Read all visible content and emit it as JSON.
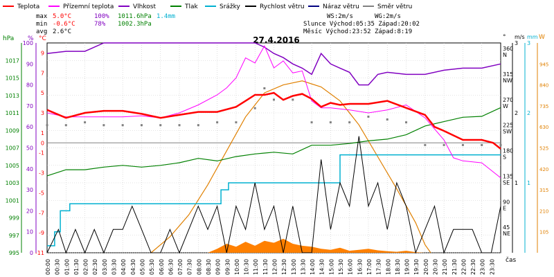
{
  "chart_data": {
    "type": "line",
    "title": "27.4.2016",
    "legend": [
      {
        "label": "Teplota",
        "color": "#ff0000"
      },
      {
        "label": "Přízemní teplota",
        "color": "#ff00ff"
      },
      {
        "label": "Vlhkost",
        "color": "#8000c0"
      },
      {
        "label": "Tlak",
        "color": "#008000"
      },
      {
        "label": "Srážky",
        "color": "#00b0d0"
      },
      {
        "label": "Rychlost větru",
        "color": "#000000"
      },
      {
        "label": "Náraz větru",
        "color": "#000080"
      },
      {
        "label": "Směr větru",
        "color": "#808080"
      }
    ],
    "stats": {
      "max_label": "max",
      "min_label": "min",
      "avg_label": "avg",
      "max_temp": "5.0°C",
      "max_hum": "100%",
      "max_press": "1011.6hPa",
      "max_rain": "1.4mm",
      "min_temp": "-0.6°C",
      "min_hum": "78%",
      "min_press": "1002.3hPa",
      "avg_temp": "2.6°C",
      "ws": "WS:2m/s",
      "wg": "WG:2m/s",
      "sun": "Slunce  Východ:05:35   Západ:20:02",
      "moon": "Měsíc  Východ:23:52   Západ:8:19"
    },
    "axes": {
      "hpa": {
        "label": "hPa",
        "ticks": [
          "1017",
          "1015",
          "1013",
          "1011",
          "1009",
          "1007",
          "1005",
          "1003",
          "1001",
          "999",
          "997",
          "995"
        ],
        "range": [
          995,
          1019
        ]
      },
      "pct": {
        "label": "%",
        "ticks": [
          "100",
          "90",
          "80",
          "70",
          "60",
          "50",
          "40",
          "30",
          "20",
          "10",
          "0"
        ],
        "range": [
          0,
          100
        ]
      },
      "temp": {
        "label": "°C",
        "ticks": [
          "9",
          "7",
          "5",
          "3",
          "1",
          "0",
          "-1",
          "-3",
          "-5",
          "-7",
          "-9",
          "-11"
        ],
        "range": [
          -11,
          10
        ]
      },
      "dir": {
        "label": "°",
        "ticks": [
          {
            "deg": "360",
            "dir": "N"
          },
          {
            "deg": "315",
            "dir": "NW"
          },
          {
            "deg": "270",
            "dir": "W"
          },
          {
            "deg": "225",
            "dir": "SW"
          },
          {
            "deg": "180",
            "dir": "S"
          },
          {
            "deg": "135",
            "dir": "SE"
          },
          {
            "deg": "90",
            "dir": "E"
          },
          {
            "deg": "45",
            "dir": "NE"
          }
        ],
        "range": [
          0,
          370
        ]
      },
      "wind": {
        "label": "m/s",
        "ticks": [
          "3",
          "2",
          "1"
        ],
        "range": [
          0,
          3
        ]
      },
      "rain": {
        "label": "mm",
        "ticks": [
          "3",
          "2",
          "1"
        ],
        "range": [
          0,
          3
        ]
      },
      "solar": {
        "label": "W",
        "ticks": [
          "945",
          "840",
          "735",
          "630",
          "525",
          "420",
          "315",
          "210",
          "105"
        ],
        "range": [
          0,
          1050
        ]
      },
      "x": {
        "label": "čas",
        "ticks": [
          "00:00",
          "00:30",
          "01:00",
          "01:30",
          "02:00",
          "02:30",
          "03:00",
          "03:30",
          "04:00",
          "04:30",
          "05:00",
          "05:30",
          "06:00",
          "06:30",
          "07:00",
          "07:30",
          "08:00",
          "08:30",
          "09:00",
          "09:30",
          "10:00",
          "10:30",
          "11:00",
          "11:30",
          "12:00",
          "12:30",
          "13:00",
          "13:30",
          "14:00",
          "14:30",
          "15:00",
          "15:30",
          "16:00",
          "16:30",
          "17:00",
          "17:30",
          "18:00",
          "18:30",
          "19:00",
          "19:30",
          "20:00",
          "20:30",
          "21:00",
          "21:30",
          "22:00",
          "22:30",
          "23:00",
          "23:30"
        ],
        "range": [
          0,
          24
        ]
      }
    },
    "series": {
      "temperature": [
        [
          0,
          3.3
        ],
        [
          1,
          2.5
        ],
        [
          2,
          3.0
        ],
        [
          3,
          3.2
        ],
        [
          4,
          3.2
        ],
        [
          5,
          2.9
        ],
        [
          6,
          2.5
        ],
        [
          7,
          2.8
        ],
        [
          8,
          3.1
        ],
        [
          9,
          3.1
        ],
        [
          10,
          3.6
        ],
        [
          10.5,
          4.2
        ],
        [
          11,
          4.8
        ],
        [
          11.5,
          4.8
        ],
        [
          12,
          5.0
        ],
        [
          12.5,
          4.3
        ],
        [
          13,
          4.7
        ],
        [
          13.5,
          4.9
        ],
        [
          14,
          4.4
        ],
        [
          14.5,
          3.6
        ],
        [
          15,
          4.0
        ],
        [
          15.5,
          3.8
        ],
        [
          16,
          3.9
        ],
        [
          17,
          3.9
        ],
        [
          18,
          4.2
        ],
        [
          19,
          3.5
        ],
        [
          20,
          2.8
        ],
        [
          20.5,
          1.6
        ],
        [
          21,
          1.2
        ],
        [
          22,
          0.3
        ],
        [
          23,
          0.3
        ],
        [
          23.6,
          0.0
        ],
        [
          24,
          -0.6
        ]
      ],
      "ground_temp": [
        [
          0,
          3.0
        ],
        [
          1,
          2.6
        ],
        [
          2,
          2.6
        ],
        [
          3,
          2.6
        ],
        [
          4,
          2.6
        ],
        [
          5,
          2.7
        ],
        [
          6,
          2.5
        ],
        [
          7,
          3.0
        ],
        [
          8,
          3.8
        ],
        [
          9,
          4.8
        ],
        [
          9.5,
          5.5
        ],
        [
          10,
          6.5
        ],
        [
          10.5,
          8.5
        ],
        [
          11,
          8.0
        ],
        [
          11.5,
          9.7
        ],
        [
          12,
          7.5
        ],
        [
          12.5,
          8.2
        ],
        [
          13,
          7.0
        ],
        [
          13.5,
          7.2
        ],
        [
          14,
          4.2
        ],
        [
          14.5,
          3.5
        ],
        [
          15,
          3.5
        ],
        [
          16,
          3.3
        ],
        [
          17,
          3.0
        ],
        [
          18,
          3.3
        ],
        [
          19,
          3.8
        ],
        [
          20,
          2.5
        ],
        [
          21,
          0.3
        ],
        [
          21.5,
          -1.5
        ],
        [
          22,
          -1.8
        ],
        [
          23,
          -2.0
        ],
        [
          24,
          -3.5
        ]
      ],
      "humidity": [
        [
          0,
          95
        ],
        [
          1,
          96
        ],
        [
          2,
          96
        ],
        [
          3,
          100
        ],
        [
          4,
          100
        ],
        [
          5,
          100
        ],
        [
          6,
          100
        ],
        [
          7,
          100
        ],
        [
          8,
          100
        ],
        [
          9,
          100
        ],
        [
          9.5,
          100
        ],
        [
          10,
          100
        ],
        [
          11,
          100
        ],
        [
          11.5,
          98
        ],
        [
          12,
          95
        ],
        [
          12.5,
          93
        ],
        [
          13,
          90
        ],
        [
          13.5,
          88
        ],
        [
          14,
          85
        ],
        [
          14.5,
          95
        ],
        [
          15,
          90
        ],
        [
          15.5,
          88
        ],
        [
          16,
          86
        ],
        [
          16.5,
          80
        ],
        [
          17,
          80
        ],
        [
          17.5,
          85
        ],
        [
          18,
          86
        ],
        [
          19,
          85
        ],
        [
          20,
          85
        ],
        [
          21,
          87
        ],
        [
          22,
          88
        ],
        [
          23,
          88
        ],
        [
          24,
          90
        ]
      ],
      "pressure": [
        [
          0,
          1003.8
        ],
        [
          1,
          1004.5
        ],
        [
          2,
          1004.5
        ],
        [
          3,
          1004.8
        ],
        [
          4,
          1005.0
        ],
        [
          5,
          1004.8
        ],
        [
          6,
          1005.0
        ],
        [
          7,
          1005.3
        ],
        [
          8,
          1005.8
        ],
        [
          9,
          1005.5
        ],
        [
          10,
          1006.0
        ],
        [
          11,
          1006.3
        ],
        [
          12,
          1006.5
        ],
        [
          13,
          1006.3
        ],
        [
          14,
          1007.3
        ],
        [
          15,
          1007.3
        ],
        [
          16,
          1007.5
        ],
        [
          17,
          1007.8
        ],
        [
          18,
          1008.0
        ],
        [
          19,
          1008.5
        ],
        [
          20,
          1009.5
        ],
        [
          21,
          1010.0
        ],
        [
          22,
          1010.5
        ],
        [
          23,
          1010.6
        ],
        [
          24,
          1011.6
        ]
      ],
      "rain": [
        [
          0,
          0.1
        ],
        [
          0.4,
          0.3
        ],
        [
          0.7,
          0.6
        ],
        [
          1.2,
          0.7
        ],
        [
          6,
          0.7
        ],
        [
          9.2,
          0.9
        ],
        [
          9.6,
          1.0
        ],
        [
          15,
          1.0
        ],
        [
          15.5,
          1.4
        ],
        [
          24,
          1.4
        ]
      ],
      "wind_speed": [
        [
          0,
          0
        ],
        [
          0.6,
          1
        ],
        [
          1,
          0
        ],
        [
          1.5,
          1
        ],
        [
          2,
          0
        ],
        [
          2.5,
          1
        ],
        [
          3,
          0
        ],
        [
          3.5,
          1
        ],
        [
          4,
          1
        ],
        [
          4.5,
          2
        ],
        [
          5,
          1
        ],
        [
          5.5,
          0
        ],
        [
          6,
          0
        ],
        [
          6.5,
          1
        ],
        [
          7,
          0
        ],
        [
          7.5,
          1
        ],
        [
          8,
          2
        ],
        [
          8.5,
          1
        ],
        [
          9,
          2
        ],
        [
          9.5,
          0
        ],
        [
          10,
          2
        ],
        [
          10.5,
          1
        ],
        [
          11,
          3
        ],
        [
          11.5,
          1
        ],
        [
          12,
          2
        ],
        [
          12.5,
          0
        ],
        [
          13,
          2
        ],
        [
          13.5,
          0
        ],
        [
          14,
          0
        ],
        [
          14.5,
          4
        ],
        [
          15,
          1
        ],
        [
          15.5,
          3
        ],
        [
          16,
          2
        ],
        [
          16.5,
          5
        ],
        [
          17,
          2
        ],
        [
          17.5,
          3
        ],
        [
          18,
          1
        ],
        [
          18.5,
          3
        ],
        [
          19,
          2
        ],
        [
          19.5,
          0
        ],
        [
          20,
          1
        ],
        [
          20.5,
          2
        ],
        [
          21,
          0
        ],
        [
          21.5,
          1
        ],
        [
          22,
          1
        ],
        [
          22.5,
          1
        ],
        [
          23,
          0
        ],
        [
          23.5,
          0
        ],
        [
          24,
          2
        ]
      ],
      "wind_dir": [
        [
          0,
          225
        ],
        [
          1,
          225
        ],
        [
          2,
          230
        ],
        [
          3,
          225
        ],
        [
          4,
          225
        ],
        [
          5,
          225
        ],
        [
          6,
          225
        ],
        [
          7,
          225
        ],
        [
          8,
          225
        ],
        [
          9,
          230
        ],
        [
          10,
          230
        ],
        [
          11,
          255
        ],
        [
          11.5,
          290
        ],
        [
          12,
          270
        ],
        [
          13,
          270
        ],
        [
          14,
          230
        ],
        [
          15,
          230
        ],
        [
          16,
          230
        ],
        [
          17,
          240
        ],
        [
          18,
          235
        ],
        [
          19,
          230
        ],
        [
          20,
          190
        ],
        [
          21,
          190
        ],
        [
          22,
          190
        ],
        [
          23,
          190
        ],
        [
          24,
          190
        ]
      ],
      "solar": [
        [
          5.5,
          0
        ],
        [
          6.5,
          80
        ],
        [
          7.5,
          190
        ],
        [
          8.5,
          340
        ],
        [
          9.5,
          510
        ],
        [
          10.5,
          680
        ],
        [
          11.5,
          800
        ],
        [
          12.5,
          840
        ],
        [
          13.5,
          860
        ],
        [
          14.5,
          830
        ],
        [
          15.5,
          760
        ],
        [
          16.5,
          640
        ],
        [
          17.5,
          480
        ],
        [
          18.5,
          320
        ],
        [
          19.5,
          150
        ],
        [
          20,
          40
        ],
        [
          20.3,
          0
        ]
      ],
      "solar_actual": [
        [
          8.5,
          0
        ],
        [
          9,
          20
        ],
        [
          9.5,
          45
        ],
        [
          10,
          30
        ],
        [
          10.5,
          55
        ],
        [
          11,
          35
        ],
        [
          11.5,
          60
        ],
        [
          12,
          50
        ],
        [
          12.5,
          70
        ],
        [
          13,
          45
        ],
        [
          13.5,
          35
        ],
        [
          14,
          30
        ],
        [
          14.5,
          20
        ],
        [
          15,
          15
        ],
        [
          15.5,
          25
        ],
        [
          16,
          10
        ],
        [
          16.5,
          15
        ],
        [
          17,
          20
        ],
        [
          17.5,
          12
        ],
        [
          18,
          8
        ],
        [
          18.5,
          5
        ],
        [
          19,
          10
        ],
        [
          19.5,
          3
        ],
        [
          20,
          0
        ]
      ]
    }
  }
}
